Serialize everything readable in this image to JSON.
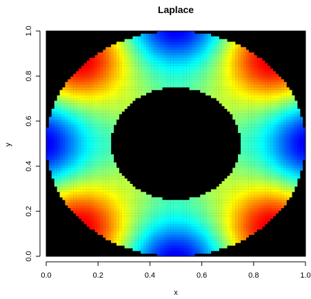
{
  "chart_data": {
    "type": "heatmap",
    "title": "Laplace",
    "xlabel": "x",
    "ylabel": "y",
    "xlim": [
      0.0,
      1.0
    ],
    "ylim": [
      0.0,
      1.0
    ],
    "x_ticks": [
      "0.0",
      "0.2",
      "0.4",
      "0.6",
      "0.8",
      "1.0"
    ],
    "y_ticks": [
      "0.0",
      "0.2",
      "0.4",
      "0.6",
      "0.8",
      "1.0"
    ],
    "domain": {
      "shape": "annulus",
      "center": [
        0.5,
        0.5
      ],
      "inner_radius": 0.25,
      "outer_radius": 0.5
    },
    "field": {
      "angular_mode": 4,
      "hot_angles_deg": [
        45,
        135,
        225,
        315
      ],
      "cold_angles_deg": [
        0,
        90,
        180,
        270
      ]
    },
    "colors": {
      "background": "#000000",
      "high": "#ff0000",
      "mid": "#7fff7f",
      "low": "#0000ff"
    }
  }
}
